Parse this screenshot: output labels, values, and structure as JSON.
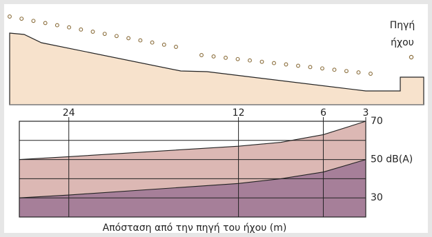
{
  "chart_data": {
    "type": "area",
    "x_label": "Απόσταση από την πηγή του ήχου (m)",
    "source_label": [
      "Πηγή",
      "ήχου"
    ],
    "x": [
      27.5,
      24,
      12,
      9,
      6,
      3
    ],
    "series": [
      {
        "color": "#dcb8b4",
        "values": [
          50,
          51.5,
          57,
          59,
          63,
          70
        ]
      },
      {
        "color": "#a67f99",
        "values": [
          30,
          31.5,
          37.5,
          40,
          43.5,
          50
        ]
      }
    ],
    "xlim": [
      27.5,
      3
    ],
    "xticks": [
      24,
      12,
      6,
      3
    ],
    "ylim": [
      20,
      70
    ],
    "yticks": [
      30,
      {
        "value": 40,
        "label": null
      },
      {
        "value": 50,
        "label": "50 dB(A)"
      },
      {
        "value": 60,
        "label": null
      },
      70
    ],
    "grid": true
  }
}
